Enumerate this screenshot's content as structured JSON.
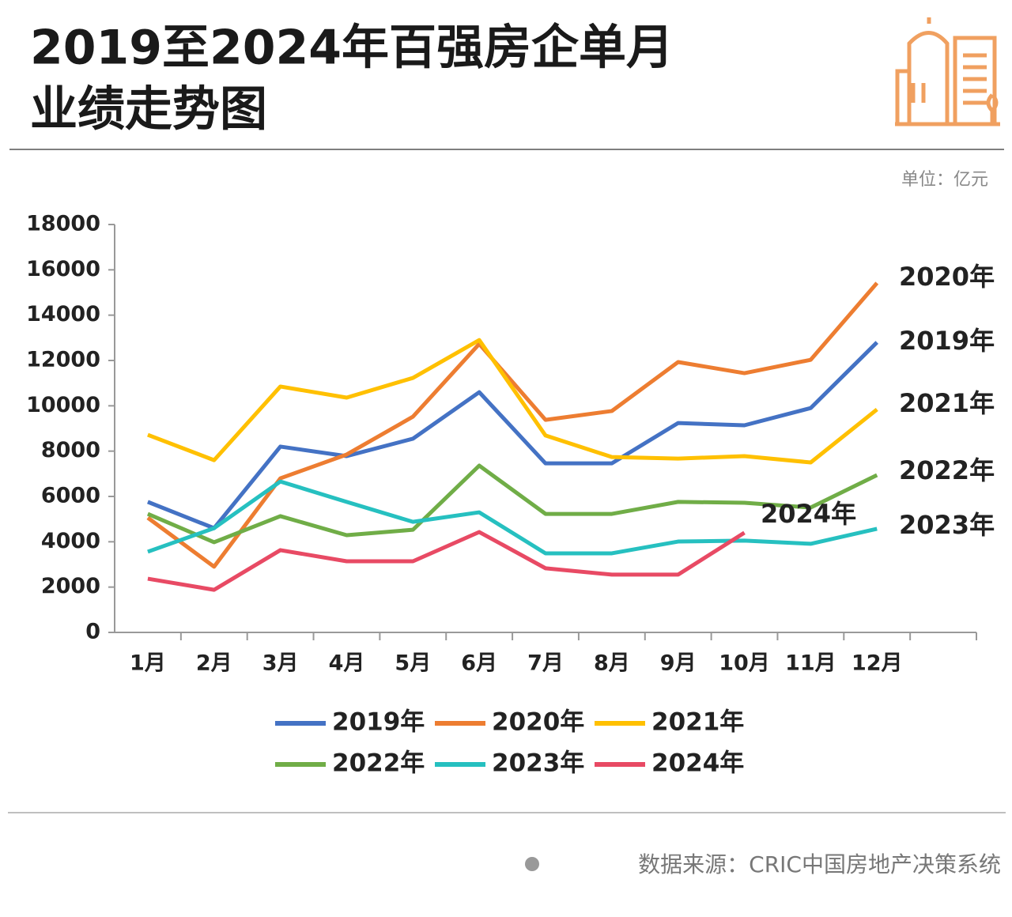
{
  "chart_data": {
    "type": "line",
    "title_lines": [
      "2019至2024年百强房企单月",
      "业绩走势图"
    ],
    "unit": "单位：亿元",
    "source": "数据来源：CRIC中国房地产决策系统",
    "categories": [
      "1月",
      "2月",
      "3月",
      "4月",
      "5月",
      "6月",
      "7月",
      "8月",
      "9月",
      "10月",
      "11月",
      "12月",
      null
    ],
    "series": [
      {
        "name": "2019年",
        "color": "#4472c4",
        "values": [
          5760,
          4600,
          8200,
          7780,
          8550,
          10600,
          7460,
          7460,
          9240,
          9140,
          9900,
          12800,
          null
        ]
      },
      {
        "name": "2020年",
        "color": "#ed7d31",
        "values": [
          5060,
          2900,
          6800,
          7850,
          9520,
          12730,
          9380,
          9770,
          11930,
          11440,
          12030,
          15420,
          null
        ]
      },
      {
        "name": "2021年",
        "color": "#ffc000",
        "values": [
          8720,
          7600,
          10850,
          10360,
          11230,
          12900,
          8690,
          7740,
          7670,
          7780,
          7500,
          9840,
          null
        ]
      },
      {
        "name": "2022年",
        "color": "#70ad47",
        "values": [
          5230,
          3980,
          5130,
          4290,
          4530,
          7360,
          5230,
          5230,
          5760,
          5720,
          5510,
          6940,
          null
        ]
      },
      {
        "name": "2023年",
        "color": "#26c0c0",
        "values": [
          3560,
          4600,
          6660,
          5760,
          4880,
          5300,
          3490,
          3490,
          4010,
          4050,
          3910,
          4570,
          null
        ]
      },
      {
        "name": "2024年",
        "color": "#e84a64",
        "values": [
          2370,
          1880,
          3630,
          3140,
          3140,
          4430,
          2830,
          2550,
          2550,
          4400,
          null,
          null,
          null
        ]
      }
    ],
    "ylim": [
      0,
      18000
    ],
    "yticks": [
      0,
      2000,
      4000,
      6000,
      8000,
      10000,
      12000,
      14000,
      16000,
      18000
    ],
    "grid": false,
    "legend": "bottom"
  }
}
